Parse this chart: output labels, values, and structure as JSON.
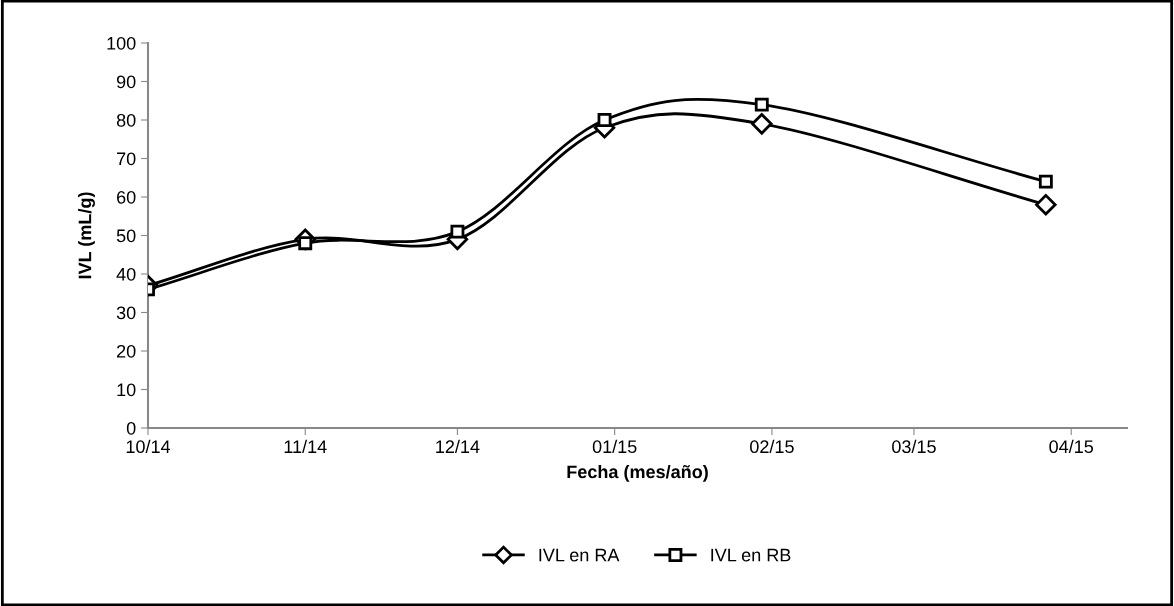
{
  "chart_data": {
    "type": "line",
    "xlabel": "Fecha (mes/año)",
    "ylabel": "IVL (mL/g)",
    "x": [
      "2014-10-01",
      "2014-11-01",
      "2014-12-01",
      "2014-12-30",
      "2015-01-30",
      "2015-03-27"
    ],
    "series": [
      {
        "name": "IVL en RA",
        "color": "#000000",
        "marker": "diamond",
        "values": [
          37,
          49,
          49,
          78,
          79,
          58
        ]
      },
      {
        "name": "IVL en RB",
        "color": "#000000",
        "marker": "square",
        "values": [
          36,
          48,
          51,
          80,
          84,
          64
        ]
      }
    ],
    "xlim": [
      "2014-10-01",
      "2015-04-12"
    ],
    "xticks": [
      {
        "value": "2014-10-01",
        "label": "10/14"
      },
      {
        "value": "2014-11-01",
        "label": "11/14"
      },
      {
        "value": "2014-12-01",
        "label": "12/14"
      },
      {
        "value": "2015-01-01",
        "label": "01/15"
      },
      {
        "value": "2015-02-01",
        "label": "02/15"
      },
      {
        "value": "2015-03-01",
        "label": "03/15"
      },
      {
        "value": "2015-04-01",
        "label": "04/15"
      }
    ],
    "ylim": [
      0,
      100
    ],
    "yticks": [
      0,
      10,
      20,
      30,
      40,
      50,
      60,
      70,
      80,
      90,
      100
    ],
    "grid": false,
    "legend": "bottom",
    "line_style": "solid"
  }
}
